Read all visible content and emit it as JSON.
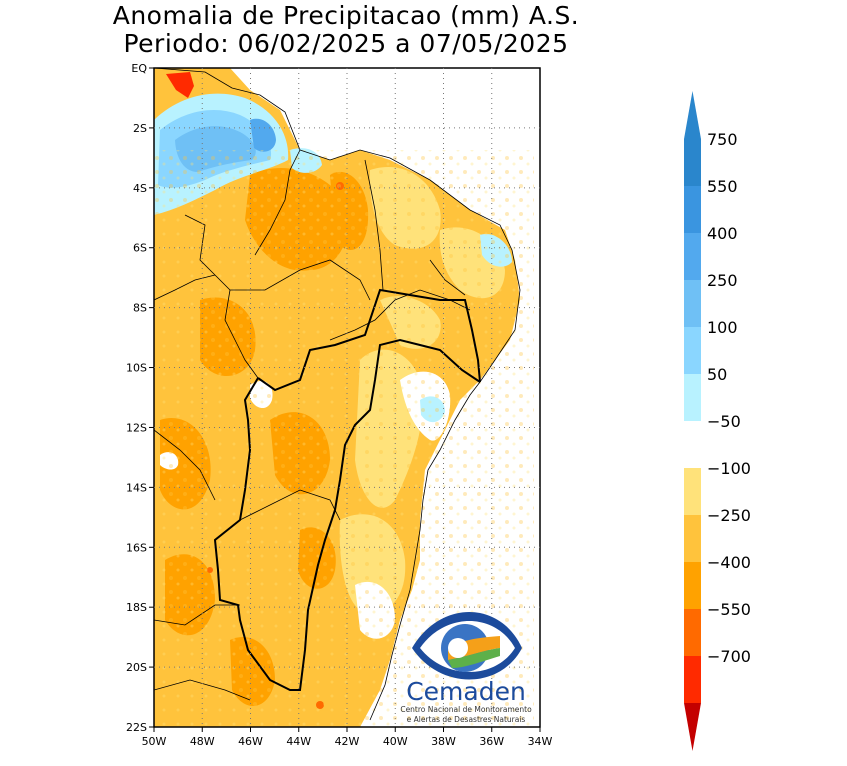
{
  "map": {
    "title_line1": "Anomalia de Precipitacao (mm) A.S.",
    "title_line2": "Periodo: 06/02/2025 a 07/05/2025",
    "y_ticks": [
      "EQ",
      "2S",
      "4S",
      "6S",
      "8S",
      "10S",
      "12S",
      "14S",
      "16S",
      "18S",
      "20S",
      "22S"
    ],
    "x_ticks": [
      "50W",
      "48W",
      "46W",
      "44W",
      "42W",
      "40W",
      "38W",
      "36W",
      "34W"
    ],
    "extent": {
      "lon_min": -50,
      "lon_max": -34,
      "lat_min": -22,
      "lat_max": 0
    },
    "colors": {
      "neg_700": "#c40000",
      "neg_550": "#ff2a00",
      "neg_400": "#ff6a00",
      "neg_250": "#ffa200",
      "neg_100": "#ffc33c",
      "neg_50": "#ffe27a",
      "neutral": "#ffffff",
      "pos_50": "#b8f2ff",
      "pos_100": "#8ad6ff",
      "pos_250": "#6fc0f5",
      "pos_400": "#52a9ee",
      "pos_550": "#3a95e0",
      "pos_750": "#2a86cc"
    }
  },
  "colorbar": {
    "labels": [
      "750",
      "550",
      "400",
      "250",
      "100",
      "50",
      "−50",
      "−100",
      "−250",
      "−400",
      "−550",
      "−700"
    ]
  },
  "logo": {
    "name": "Cemaden",
    "line1": "Centro Nacional de Monitoramento",
    "line2": "e Alertas de Desastres Naturais"
  }
}
